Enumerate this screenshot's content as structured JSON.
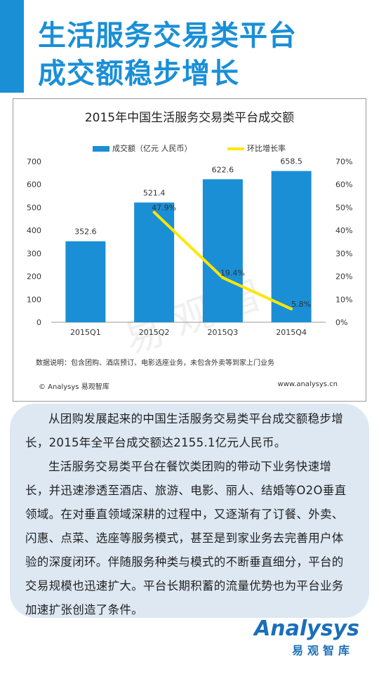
{
  "header": {
    "title_line1": "生活服务交易类平台",
    "title_line2": "成交额稳步增长"
  },
  "chart_data": {
    "type": "bar",
    "title": "2015年中国生活服务交易类平台成交额",
    "categories": [
      "2015Q1",
      "2015Q2",
      "2015Q3",
      "2015Q4"
    ],
    "series": [
      {
        "name": "成交额（亿元 人民币）",
        "type": "bar",
        "axis": "left",
        "color": "#1a8fd6",
        "values": [
          352.6,
          521.4,
          622.6,
          658.5
        ],
        "labels": [
          "352.6",
          "521.4",
          "622.6",
          "658.5"
        ]
      },
      {
        "name": "环比增长率",
        "type": "line",
        "axis": "right",
        "color": "#ffe600",
        "values": [
          null,
          47.9,
          19.4,
          5.8
        ],
        "labels": [
          "",
          "47.9%",
          "19.4%",
          "5.8%"
        ]
      }
    ],
    "y_left": {
      "ylim": [
        0,
        700
      ],
      "ticks": [
        "0",
        "100",
        "200",
        "300",
        "400",
        "500",
        "600",
        "700"
      ]
    },
    "y_right": {
      "ylim": [
        0,
        70
      ],
      "ticks": [
        "0%",
        "10%",
        "20%",
        "30%",
        "40%",
        "50%",
        "60%",
        "70%"
      ]
    },
    "grid": false,
    "legend_position": "top"
  },
  "chart_footer": {
    "note": "数据说明：包含团购、酒店预订、电影选座业务，未包含外卖等到家上门业务",
    "copyright": "© Analysys 易观智库",
    "website": "www.analysys.cn",
    "watermark": "易观智库"
  },
  "body_text": {
    "para1": "从团购发展起来的中国生活服务交易类平台成交额稳步增长，2015年全平台成交额达2155.1亿元人民币。",
    "para2": "生活服务交易类平台在餐饮类团购的带动下业务快速增长，并迅速渗透至酒店、旅游、电影、丽人、结婚等O2O垂直领域。在对垂直领域深耕的过程中，又逐渐有了订餐、外卖、闪惠、点菜、选座等服务模式，甚至是到家业务去完善用户体验的深度闭环。伴随服务种类与模式的不断垂直细分，平台的交易规模也迅速扩大。平台长期积蓄的流量优势也为平台业务加速扩张创造了条件。"
  },
  "logo": {
    "wordmark": "Analysys",
    "subtitle": "易观智库"
  }
}
